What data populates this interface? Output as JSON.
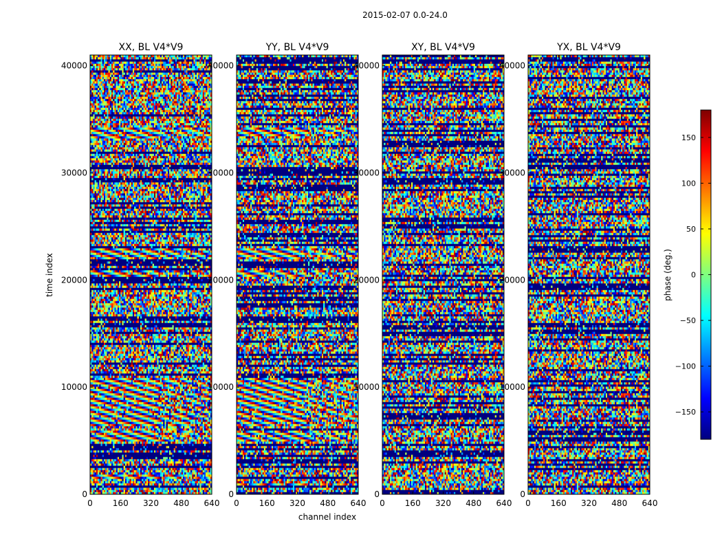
{
  "figure": {
    "suptitle": "2015-02-07 0.0-24.0",
    "xlabel": "channel index",
    "ylabel": "time index"
  },
  "colorbar": {
    "label": "phase (deg.)",
    "ticks": [
      150,
      100,
      50,
      0,
      -50,
      -100,
      -150
    ],
    "tick_labels": [
      "150",
      "100",
      "50",
      "0",
      "−50",
      "−100",
      "−150"
    ],
    "range": [
      -180,
      180
    ],
    "colormap": "jet",
    "colors": [
      "#00007f",
      "#0000ff",
      "#007fff",
      "#00ffff",
      "#7fff7f",
      "#ffff00",
      "#ff7f00",
      "#ff0000",
      "#7f0000"
    ]
  },
  "chart_data": {
    "type": "heatmap",
    "xlim": [
      0,
      640
    ],
    "ylim": [
      0,
      41000
    ],
    "x_ticks": [
      0,
      160,
      320,
      480,
      640
    ],
    "x_tick_labels": [
      "0",
      "160",
      "320",
      "480",
      "640"
    ],
    "y_ticks": [
      0,
      10000,
      20000,
      30000,
      40000
    ],
    "y_tick_labels": [
      "0",
      "10000",
      "20000",
      "30000",
      "40000"
    ],
    "value_range": [
      -180,
      180
    ],
    "panels": [
      {
        "title": "XX, BL V4*V9",
        "fringe_rows": [
          [
            1500,
            1900
          ],
          [
            5000,
            5900
          ],
          [
            6300,
            10800
          ],
          [
            20200,
            21000
          ],
          [
            22000,
            23000
          ],
          [
            33200,
            34200
          ]
        ]
      },
      {
        "title": "YY, BL V4*V9",
        "fringe_rows": [
          [
            800,
            1100
          ],
          [
            5000,
            5900
          ],
          [
            6300,
            10800
          ],
          [
            20200,
            21000
          ],
          [
            22000,
            23000
          ],
          [
            33500,
            34300
          ]
        ]
      },
      {
        "title": "XY, BL V4*V9",
        "fringe_rows": []
      },
      {
        "title": "YX, BL V4*V9",
        "fringe_rows": []
      }
    ]
  }
}
